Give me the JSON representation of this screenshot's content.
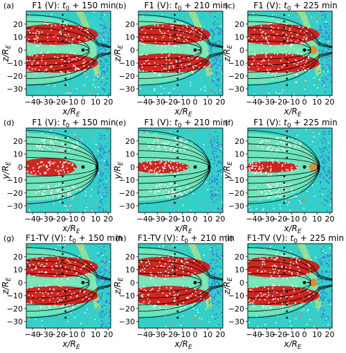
{
  "figure": {
    "panels": [
      {
        "tag": "(a)",
        "label": "F1 (V)",
        "time": "t0 + 150 min",
        "ylabel": "z/RE",
        "xlabel": "x/RE",
        "view": "xz",
        "pert": 0
      },
      {
        "tag": "(b)",
        "label": "F1 (V)",
        "time": "t0 + 210 min",
        "ylabel": "z/RE",
        "xlabel": "x/RE",
        "view": "xz",
        "pert": 1
      },
      {
        "tag": "(c)",
        "label": "F1 (V)",
        "time": "t0 + 225 min",
        "ylabel": "z/RE",
        "xlabel": "x/RE",
        "view": "xz",
        "pert": 2
      },
      {
        "tag": "(d)",
        "label": "F1 (V)",
        "time": "t0 + 150 min",
        "ylabel": "y/RE",
        "xlabel": "x/RE",
        "view": "xy",
        "pert": 0
      },
      {
        "tag": "(e)",
        "label": "F1 (V)",
        "time": "t0 + 210 min",
        "ylabel": "y/RE",
        "xlabel": "x/RE",
        "view": "xy",
        "pert": 1
      },
      {
        "tag": "(f)",
        "label": "F1 (V)",
        "time": "t0 + 225 min",
        "ylabel": "y/RE",
        "xlabel": "x/RE",
        "view": "xy",
        "pert": 2
      },
      {
        "tag": "(g)",
        "label": "F1-TV (V)",
        "time": "t0 + 150 min",
        "ylabel": "z/RE",
        "xlabel": "x/RE",
        "view": "xz",
        "pert": 0
      },
      {
        "tag": "(h)",
        "label": "F1-TV (V)",
        "time": "t0 + 210 min",
        "ylabel": "z/RE",
        "xlabel": "x/RE",
        "view": "xz",
        "pert": 1
      },
      {
        "tag": "(i)",
        "label": "F1-TV (V)",
        "time": "t0 + 225 min",
        "ylabel": "z/RE",
        "xlabel": "x/RE",
        "view": "xz",
        "pert": 2
      }
    ],
    "x_ticks": [
      "−40",
      "−30",
      "−20",
      "−10",
      "0",
      "10",
      "20"
    ],
    "x_tick_values": [
      -40,
      -30,
      -20,
      -10,
      0,
      10,
      20
    ],
    "y_ticks": [
      "20",
      "10",
      "0",
      "−10",
      "−20",
      "−30"
    ],
    "y_tick_values": [
      20,
      10,
      0,
      -10,
      -20,
      -30
    ],
    "xlim": [
      -45,
      22
    ],
    "ylim": [
      -35,
      30
    ],
    "colors": {
      "red": "#d8120f",
      "orange": "#f07a28",
      "cyan": "#34cfc8",
      "mint": "#7de8b6",
      "yellow": "#e6e86a",
      "blue": "#2f7fe0",
      "purple": "#7a2fd8",
      "white": "#ffffff"
    }
  }
}
